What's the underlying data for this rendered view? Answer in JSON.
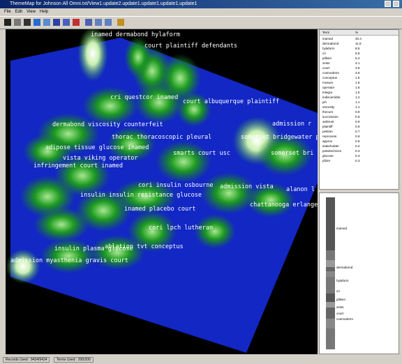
{
  "window_title": "ThemeMap for Johnson All Omni.txt/View1.update2.update1.update1.update1.update1",
  "menu": [
    "File",
    "Edit",
    "View",
    "Help"
  ],
  "term_table": {
    "headers": [
      "Term",
      "%"
    ],
    "rows": [
      [
        "inamed",
        "40.4"
      ],
      [
        "dermabond",
        "11.8"
      ],
      [
        "hylaform",
        "8.5"
      ],
      [
        "cri",
        "5.5"
      ],
      [
        "pillsen",
        "5.4"
      ],
      [
        "zeiss",
        "4.1"
      ],
      [
        "court",
        "3.8"
      ],
      [
        "cosmoderm",
        "3.6"
      ],
      [
        "conceptus",
        "1.6"
      ],
      [
        "mosure",
        "1.6"
      ],
      [
        "operator",
        "1.6"
      ],
      [
        "integra",
        "1.5"
      ],
      [
        "indiscernible",
        "1.2"
      ],
      [
        "jvh",
        "1.1"
      ],
      [
        "viscosity",
        "1.1"
      ],
      [
        "thecure",
        "0.9"
      ],
      [
        "succession",
        "0.9"
      ],
      [
        "antitrust",
        "0.9"
      ],
      [
        "plaintiff",
        "0.8"
      ],
      [
        "petition",
        "0.7"
      ],
      [
        "reprocess",
        "0.6"
      ],
      [
        "approx",
        "0.6"
      ],
      [
        "stakeholder",
        "0.4"
      ],
      [
        "polartechnics",
        "0.3"
      ],
      [
        "glucose",
        "0.3"
      ],
      [
        "pfizer",
        "0.3"
      ]
    ]
  },
  "map_labels": [
    "inamed dermabond hylaform",
    "court plaintiff defendants",
    "cri questcor inamed",
    "court albuquerque plaintiff",
    "dermabond viscosity counterfeit",
    "thorac thoracoscopic pleural",
    "admission r",
    "somerset bridgewater plain",
    "somerset bri",
    "adipose tissue glucose inamed",
    "vista viking operator",
    "smarts court usc",
    "infringement court inamed",
    "cori insulin osbourne",
    "admission vista",
    "alanon l",
    "insulin insulin resistance glucose",
    "chattanooga erlange",
    "inamed placebo court",
    "cori lpch lutheran",
    "ablation tvt conceptus",
    "insulin plasma glucose",
    "admission myasthenia gravis court"
  ],
  "histogram_labels": [
    "inamed",
    "dermabond",
    "hylaform",
    "cri",
    "pillsen",
    "zeiss",
    "court",
    "cosmoderm"
  ],
  "status": {
    "records": "Records Used : 9434/9434",
    "terms": "Terms Used : 200/200"
  }
}
